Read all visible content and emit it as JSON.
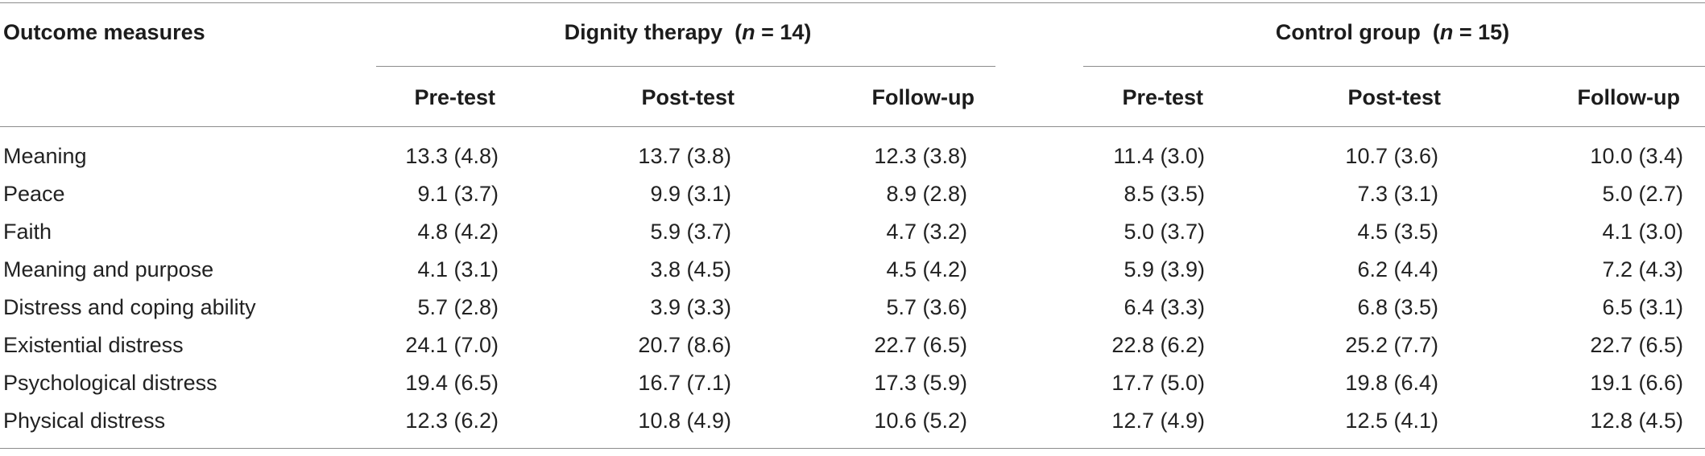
{
  "header": {
    "outcome_label": "Outcome measures",
    "groups": [
      {
        "name": "Dignity therapy",
        "n_label": "n",
        "n_value": " = 14"
      },
      {
        "name": "Control group",
        "n_label": "n",
        "n_value": " = 15"
      }
    ],
    "subcolumns": [
      "Pre-test",
      "Post-test",
      "Follow-up",
      "Pre-test",
      "Post-test",
      "Follow-up"
    ]
  },
  "rows": [
    {
      "label": "Meaning",
      "values": [
        "13.3 (4.8)",
        "13.7 (3.8)",
        "12.3 (3.8)",
        "11.4 (3.0)",
        "10.7 (3.6)",
        "10.0 (3.4)"
      ]
    },
    {
      "label": "Peace",
      "values": [
        "9.1 (3.7)",
        "9.9 (3.1)",
        "8.9 (2.8)",
        "8.5 (3.5)",
        "7.3 (3.1)",
        "5.0 (2.7)"
      ]
    },
    {
      "label": "Faith",
      "values": [
        "4.8 (4.2)",
        "5.9 (3.7)",
        "4.7 (3.2)",
        "5.0 (3.7)",
        "4.5 (3.5)",
        "4.1 (3.0)"
      ]
    },
    {
      "label": "Meaning and purpose",
      "values": [
        "4.1 (3.1)",
        "3.8 (4.5)",
        "4.5 (4.2)",
        "5.9 (3.9)",
        "6.2 (4.4)",
        "7.2 (4.3)"
      ]
    },
    {
      "label": "Distress and coping ability",
      "values": [
        "5.7 (2.8)",
        "3.9 (3.3)",
        "5.7 (3.6)",
        "6.4 (3.3)",
        "6.8 (3.5)",
        "6.5 (3.1)"
      ]
    },
    {
      "label": "Existential distress",
      "values": [
        "24.1 (7.0)",
        "20.7 (8.6)",
        "22.7 (6.5)",
        "22.8 (6.2)",
        "25.2 (7.7)",
        "22.7 (6.5)"
      ]
    },
    {
      "label": "Psychological distress",
      "values": [
        "19.4 (6.5)",
        "16.7 (7.1)",
        "17.3 (5.9)",
        "17.7 (5.0)",
        "19.8 (6.4)",
        "19.1 (6.6)"
      ]
    },
    {
      "label": "Physical distress",
      "values": [
        "12.3 (6.2)",
        "10.8 (4.9)",
        "10.6 (5.2)",
        "12.7 (4.9)",
        "12.5 (4.1)",
        "12.8 (4.5)"
      ]
    }
  ]
}
